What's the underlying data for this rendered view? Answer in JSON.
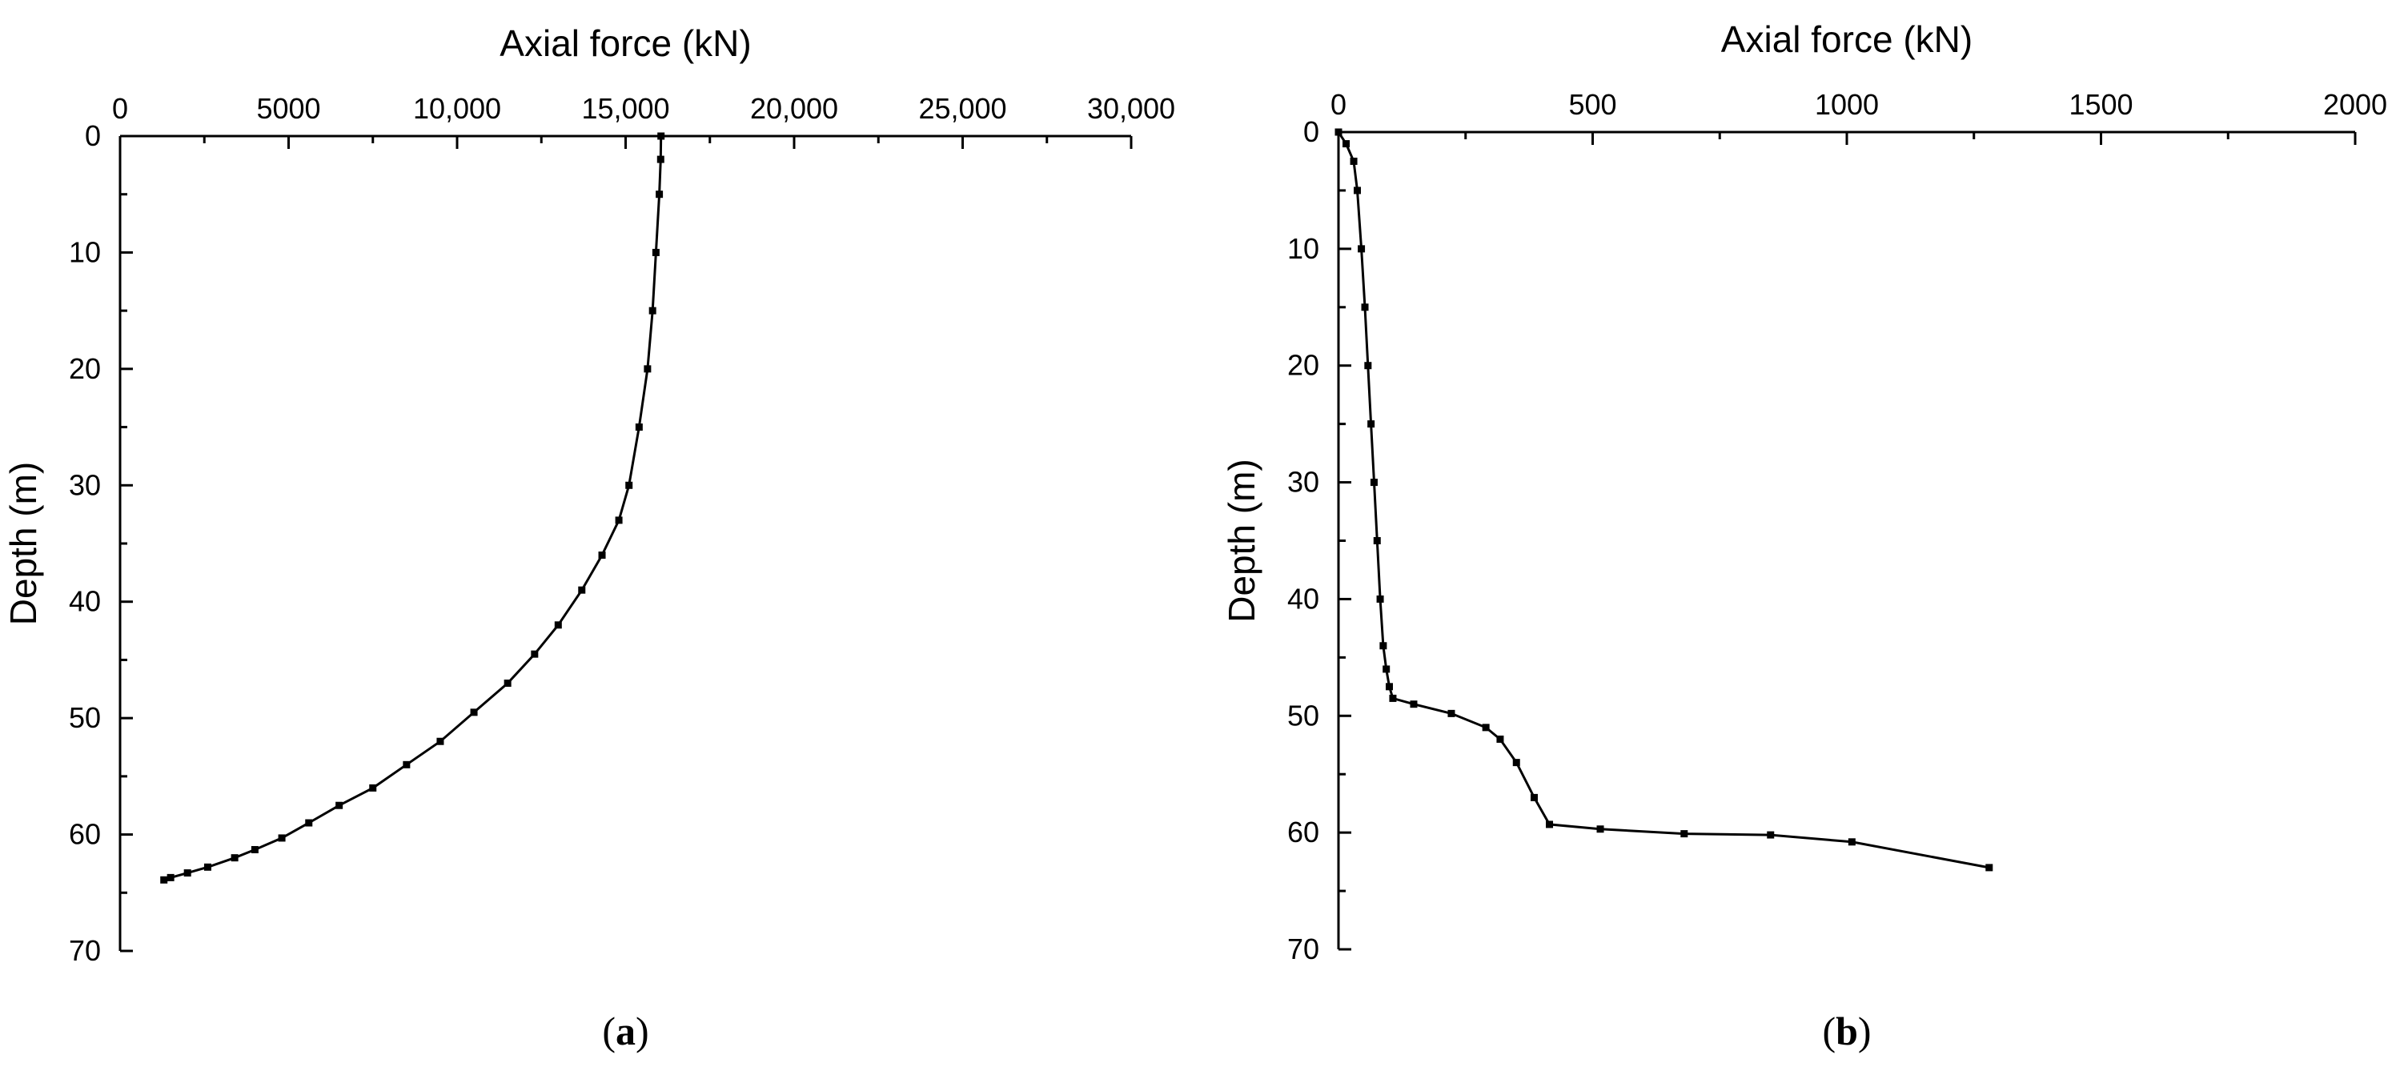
{
  "chart_data": [
    {
      "type": "line",
      "panel_label": "(a)",
      "xlabel": "Axial force (kN)",
      "ylabel": "Depth (m)",
      "x_axis_position": "top",
      "y_axis_inverted": true,
      "xlim": [
        0,
        30000
      ],
      "ylim": [
        0,
        70
      ],
      "x_ticks": [
        0,
        5000,
        10000,
        15000,
        20000,
        25000,
        30000
      ],
      "x_tick_labels": [
        "0",
        "5000",
        "10,000",
        "15,000",
        "20,000",
        "25,000",
        "30,000"
      ],
      "y_ticks": [
        0,
        10,
        20,
        30,
        40,
        50,
        60,
        70
      ],
      "y_tick_labels": [
        "0",
        "10",
        "20",
        "30",
        "40",
        "50",
        "60",
        "70"
      ],
      "marker": "square",
      "color": "#000000",
      "series": [
        {
          "x": [
            16050,
            16040,
            16000,
            15900,
            15800,
            15650,
            15400,
            15100,
            14800,
            14300,
            13700,
            13000,
            12300,
            11500,
            10500,
            9500,
            8500,
            7500,
            6500,
            5600,
            4800,
            4000,
            3400,
            2600,
            2000,
            1500,
            1300
          ],
          "y": [
            0,
            2,
            5,
            10,
            15,
            20,
            25,
            30,
            33,
            36,
            39,
            42,
            44.5,
            47,
            49.5,
            52,
            54,
            56,
            57.5,
            59,
            60.3,
            61.3,
            62,
            62.8,
            63.3,
            63.7,
            63.9
          ]
        }
      ]
    },
    {
      "type": "line",
      "panel_label": "(b)",
      "xlabel": "Axial force (kN)",
      "ylabel": "Depth (m)",
      "x_axis_position": "top",
      "y_axis_inverted": true,
      "xlim": [
        0,
        2000
      ],
      "ylim": [
        0,
        70
      ],
      "x_ticks": [
        0,
        500,
        1000,
        1500,
        2000
      ],
      "x_tick_labels": [
        "0",
        "500",
        "1000",
        "1500",
        "2000"
      ],
      "y_ticks": [
        0,
        10,
        20,
        30,
        40,
        50,
        60,
        70
      ],
      "y_tick_labels": [
        "0",
        "10",
        "20",
        "30",
        "40",
        "50",
        "60",
        "70"
      ],
      "marker": "square",
      "color": "#000000",
      "series": [
        {
          "x": [
            0,
            15,
            30,
            37,
            45,
            52,
            58,
            64,
            70,
            76,
            82,
            88,
            94,
            100,
            107,
            148,
            222,
            290,
            318,
            350,
            385,
            415,
            515,
            680,
            850,
            1010,
            1280
          ],
          "y": [
            0,
            1,
            2.5,
            5,
            10,
            15,
            20,
            25,
            30,
            35,
            40,
            44,
            46,
            47.5,
            48.5,
            49,
            49.8,
            51,
            52,
            54,
            57,
            59.3,
            59.7,
            60.1,
            60.2,
            60.8,
            63
          ]
        }
      ]
    }
  ]
}
